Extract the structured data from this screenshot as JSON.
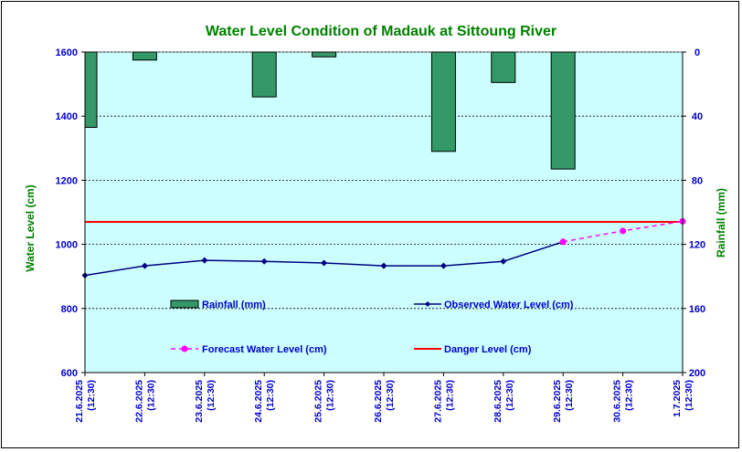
{
  "chart_data": {
    "type": "bar+line",
    "title": "Water Level Condition of Madauk at Sittoung River",
    "ylabel_left": "Water Level (cm)",
    "ylabel_right": "Rainfall (mm)",
    "categories": [
      [
        "21.6.2025",
        "(12:30)"
      ],
      [
        "22.6.2025",
        "(12:30)"
      ],
      [
        "23.6.2025",
        "(12:30)"
      ],
      [
        "24.6.2025",
        "(12:30)"
      ],
      [
        "25.6.2025",
        "(12:30)"
      ],
      [
        "26.6.2025",
        "(12:30)"
      ],
      [
        "27.6.2025",
        "(12:30)"
      ],
      [
        "28.6.2025",
        "(12:30)"
      ],
      [
        "29.6.2025",
        "(12:30)"
      ],
      [
        "30.6.2025",
        "(12:30)"
      ],
      [
        "1.7.2025",
        "(12:30)"
      ]
    ],
    "ylim_left": [
      600,
      1600
    ],
    "yticks_left": [
      600,
      800,
      1000,
      1200,
      1400,
      1600
    ],
    "ylim_right": [
      200,
      0
    ],
    "yticks_right": [
      0,
      40,
      80,
      120,
      160,
      200
    ],
    "right_axis_inverted": true,
    "grid": "horizontal dashed",
    "legend": [
      {
        "key": "rainfall",
        "label": "Rainfall (mm)"
      },
      {
        "key": "observed",
        "label": "Observed Water Level (cm)"
      },
      {
        "key": "forecast",
        "label": "Forecast Water Level (cm)"
      },
      {
        "key": "danger",
        "label": "Danger Level (cm)"
      }
    ],
    "rainfall": [
      {
        "x": "21.6.2025",
        "value": 47
      },
      {
        "x": "22.6.2025",
        "value": 5
      },
      {
        "x": "24.6.2025",
        "value": 28
      },
      {
        "x": "25.6.2025",
        "value": 3
      },
      {
        "x": "27.6.2025",
        "value": 62
      },
      {
        "x": "28.6.2025",
        "value": 19
      },
      {
        "x": "29.6.2025",
        "value": 73
      }
    ],
    "observed_water_level": [
      903,
      933,
      950,
      947,
      942,
      933,
      933,
      947,
      1008
    ],
    "forecast_water_level": [
      {
        "x": "29.6.2025",
        "value": 1008
      },
      {
        "x": "30.6.2025",
        "value": 1042
      },
      {
        "x": "1.7.2025",
        "value": 1072
      }
    ],
    "danger_level": 1070,
    "colors": {
      "plot_bg": "#ccffff",
      "title": "#008000",
      "axis_text": "#0000cc",
      "axis_label": "#008000",
      "rainfall_bar": "#339966",
      "observed": "#000080",
      "forecast": "#ff00ff",
      "danger": "#ff0000",
      "legend_text": "#0000cc"
    }
  }
}
